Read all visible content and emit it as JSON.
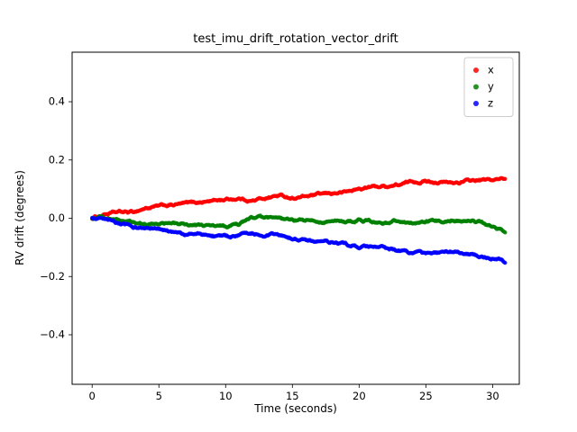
{
  "chart_data": {
    "type": "scatter",
    "title": "test_imu_drift_rotation_vector_drift",
    "xlabel": "Time (seconds)",
    "ylabel": "RV drift (degrees)",
    "xlim": [
      -1.5,
      32.0
    ],
    "ylim": [
      -0.57,
      0.57
    ],
    "xticks": [
      0,
      5,
      10,
      15,
      20,
      25,
      30
    ],
    "yticks": [
      -0.4,
      -0.2,
      0.0,
      0.2,
      0.4
    ],
    "grid": false,
    "background_color": "#ffffff",
    "axes_edge_color": "#000000",
    "legend": {
      "position": "upper right",
      "entries": [
        "x",
        "y",
        "z"
      ]
    },
    "t": [
      0,
      1,
      2,
      3,
      4,
      5,
      6,
      7,
      8,
      9,
      10,
      11,
      12,
      13,
      14,
      15,
      16,
      17,
      18,
      19,
      20,
      21,
      22,
      23,
      24,
      25,
      26,
      27,
      28,
      29,
      30,
      31
    ],
    "series": [
      {
        "name": "x",
        "color": "#ff0000",
        "values": [
          0.0,
          0.015,
          0.02,
          0.02,
          0.035,
          0.04,
          0.045,
          0.05,
          0.055,
          0.06,
          0.065,
          0.068,
          0.06,
          0.07,
          0.078,
          0.07,
          0.075,
          0.08,
          0.085,
          0.09,
          0.1,
          0.108,
          0.11,
          0.115,
          0.125,
          0.128,
          0.125,
          0.12,
          0.127,
          0.13,
          0.13,
          0.135
        ]
      },
      {
        "name": "y",
        "color": "#008000",
        "values": [
          0.0,
          0.005,
          -0.008,
          -0.015,
          -0.025,
          -0.018,
          -0.02,
          -0.02,
          -0.025,
          -0.028,
          -0.03,
          -0.022,
          0.002,
          0.0,
          -0.005,
          -0.01,
          -0.008,
          -0.012,
          -0.01,
          -0.015,
          -0.005,
          -0.012,
          -0.015,
          -0.008,
          -0.015,
          -0.015,
          -0.01,
          -0.005,
          -0.01,
          -0.012,
          -0.03,
          -0.045
        ]
      },
      {
        "name": "z",
        "color": "#0000ff",
        "values": [
          0.0,
          -0.01,
          -0.02,
          -0.03,
          -0.035,
          -0.04,
          -0.05,
          -0.055,
          -0.055,
          -0.06,
          -0.065,
          -0.06,
          -0.05,
          -0.055,
          -0.06,
          -0.07,
          -0.075,
          -0.08,
          -0.085,
          -0.09,
          -0.1,
          -0.1,
          -0.105,
          -0.11,
          -0.12,
          -0.125,
          -0.12,
          -0.115,
          -0.12,
          -0.13,
          -0.135,
          -0.15
        ]
      }
    ]
  }
}
